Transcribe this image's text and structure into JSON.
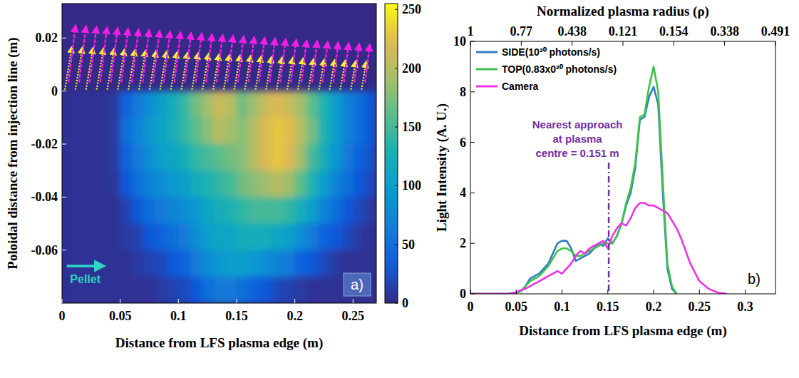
{
  "chart_data": [
    {
      "type": "heatmap",
      "xlabel": "Distance from LFS plasma edge (m)",
      "ylabel": "Poloidal distance from injection line (m)",
      "xlim": [
        0,
        0.27
      ],
      "ylim": [
        -0.08,
        0.033
      ],
      "xticks": [
        0,
        0.05,
        0.1,
        0.15,
        0.2,
        0.25
      ],
      "yticks": [
        0.02,
        0,
        -0.02,
        -0.04,
        -0.06
      ],
      "grid": false,
      "x_bins": [
        0,
        0.01,
        0.02,
        0.03,
        0.04,
        0.05,
        0.06,
        0.07,
        0.08,
        0.09,
        0.1,
        0.11,
        0.12,
        0.13,
        0.14,
        0.15,
        0.16,
        0.17,
        0.18,
        0.19,
        0.2,
        0.21,
        0.22,
        0.23,
        0.24,
        0.25,
        0.26,
        0.27
      ],
      "y_bins": [
        0,
        -0.01,
        -0.02,
        -0.03,
        -0.04,
        -0.05,
        -0.06,
        -0.07,
        -0.08
      ],
      "z": [
        [
          5,
          5,
          5,
          5,
          10,
          40,
          60,
          80,
          100,
          120,
          140,
          170,
          190,
          210,
          200,
          170,
          190,
          210,
          220,
          210,
          190,
          160,
          130,
          100,
          70,
          50,
          30
        ],
        [
          5,
          5,
          5,
          5,
          10,
          50,
          70,
          90,
          110,
          120,
          140,
          160,
          180,
          200,
          190,
          180,
          200,
          220,
          230,
          225,
          200,
          170,
          130,
          100,
          70,
          50,
          30
        ],
        [
          5,
          5,
          5,
          5,
          10,
          40,
          60,
          80,
          100,
          110,
          120,
          140,
          150,
          160,
          170,
          180,
          200,
          220,
          230,
          220,
          190,
          150,
          120,
          90,
          60,
          40,
          25
        ],
        [
          5,
          5,
          5,
          5,
          8,
          30,
          50,
          70,
          80,
          90,
          100,
          120,
          130,
          140,
          150,
          170,
          180,
          190,
          200,
          190,
          160,
          130,
          100,
          70,
          50,
          30,
          20
        ],
        [
          5,
          5,
          5,
          5,
          5,
          15,
          30,
          50,
          60,
          70,
          80,
          90,
          110,
          120,
          130,
          140,
          150,
          150,
          150,
          140,
          120,
          100,
          70,
          50,
          30,
          20,
          10
        ],
        [
          5,
          5,
          5,
          5,
          5,
          10,
          15,
          30,
          40,
          50,
          60,
          80,
          100,
          110,
          110,
          120,
          120,
          120,
          110,
          100,
          80,
          60,
          40,
          30,
          20,
          10,
          5
        ],
        [
          5,
          5,
          5,
          5,
          5,
          5,
          10,
          15,
          20,
          30,
          40,
          60,
          80,
          90,
          100,
          100,
          90,
          80,
          70,
          60,
          40,
          30,
          20,
          10,
          5,
          5,
          5
        ],
        [
          5,
          5,
          5,
          5,
          5,
          5,
          5,
          5,
          10,
          15,
          20,
          30,
          50,
          60,
          60,
          50,
          40,
          30,
          20,
          15,
          10,
          5,
          5,
          5,
          5,
          5,
          5
        ]
      ],
      "colorbar": {
        "range": [
          0,
          255
        ],
        "ticks": [
          0,
          50,
          100,
          150,
          200,
          250
        ]
      },
      "annotations": [
        {
          "text": "Pellet"
        }
      ],
      "panel_label": "a)"
    },
    {
      "type": "line",
      "xlabel": "Distance from LFS plasma edge (m)",
      "ylabel": "Light Intensity (A. U.)",
      "x2label": "Normalized plasma radius (ρ)",
      "xlim": [
        0,
        0.333
      ],
      "ylim": [
        0,
        10
      ],
      "xticks": [
        0,
        0.05,
        0.1,
        0.15,
        0.2,
        0.25,
        0.3
      ],
      "yticks": [
        0,
        2,
        4,
        6,
        8,
        10
      ],
      "x2lim": [
        0,
        0.333
      ],
      "x2ticks": [
        {
          "value": 0,
          "label": "1"
        },
        {
          "value": 0.0555,
          "label": "0.77"
        },
        {
          "value": 0.111,
          "label": "0.438"
        },
        {
          "value": 0.1665,
          "label": "0.121"
        },
        {
          "value": 0.222,
          "label": "0.154"
        },
        {
          "value": 0.2775,
          "label": "0.338"
        },
        {
          "value": 0.333,
          "label": "0.491"
        }
      ],
      "grid": false,
      "legend": "upper left",
      "x": [
        0,
        0.01,
        0.02,
        0.03,
        0.04,
        0.05,
        0.055,
        0.06,
        0.065,
        0.07,
        0.075,
        0.08,
        0.085,
        0.09,
        0.095,
        0.1,
        0.105,
        0.11,
        0.115,
        0.12,
        0.125,
        0.13,
        0.135,
        0.14,
        0.145,
        0.15,
        0.155,
        0.16,
        0.165,
        0.17,
        0.175,
        0.18,
        0.185,
        0.19,
        0.195,
        0.2,
        0.205,
        0.21,
        0.215,
        0.22,
        0.225,
        0.23,
        0.235,
        0.24,
        0.25,
        0.26,
        0.27,
        0.28
      ],
      "series": [
        {
          "name": "SIDE(10²⁰ photons/s)",
          "color": "#2f7fc1",
          "values": [
            0,
            0,
            0,
            0,
            0,
            0.05,
            0.1,
            0.3,
            0.6,
            0.7,
            0.8,
            1.0,
            1.2,
            1.6,
            2.0,
            2.1,
            2.1,
            1.8,
            1.3,
            1.4,
            1.5,
            1.6,
            1.8,
            2.0,
            1.9,
            2.2,
            2.0,
            2.3,
            2.8,
            3.5,
            4.0,
            5.0,
            6.9,
            7.0,
            7.8,
            8.2,
            7.5,
            4.0,
            1.0,
            0.2,
            0,
            null,
            null,
            null,
            null,
            null,
            null,
            null
          ]
        },
        {
          "name": "TOP(0.83x0²⁰ photons/s)",
          "color": "#3fc24a",
          "values": [
            0,
            0,
            0,
            0,
            0,
            0.05,
            0.1,
            0.3,
            0.5,
            0.6,
            0.7,
            0.9,
            1.1,
            1.4,
            1.7,
            1.8,
            1.8,
            1.7,
            1.5,
            1.5,
            1.6,
            1.7,
            1.8,
            1.9,
            2.0,
            2.0,
            2.0,
            2.3,
            2.8,
            3.6,
            4.2,
            5.2,
            7.0,
            7.1,
            8.2,
            9.0,
            8.0,
            4.5,
            1.2,
            0.3,
            0,
            null,
            null,
            null,
            null,
            null,
            null,
            null
          ]
        },
        {
          "name": "Camera",
          "color": "#f032e6",
          "values": [
            0,
            0,
            0,
            0,
            0,
            0.05,
            0.15,
            0.2,
            0.3,
            0.4,
            0.5,
            0.6,
            0.7,
            0.8,
            0.9,
            0.8,
            1.0,
            1.2,
            1.5,
            1.7,
            1.6,
            1.8,
            1.9,
            2.0,
            2.1,
            1.8,
            2.3,
            2.6,
            2.8,
            2.7,
            3.0,
            3.4,
            3.6,
            3.6,
            3.5,
            3.5,
            3.4,
            3.3,
            3.2,
            2.9,
            2.6,
            2.2,
            1.7,
            1.2,
            0.5,
            0.2,
            0.05,
            0
          ]
        }
      ],
      "annotations": [
        {
          "text": [
            "Nearest approach",
            "at plasma",
            "centre = 0.151 m"
          ],
          "x": 0.151
        }
      ],
      "panel_label": "b)"
    }
  ]
}
